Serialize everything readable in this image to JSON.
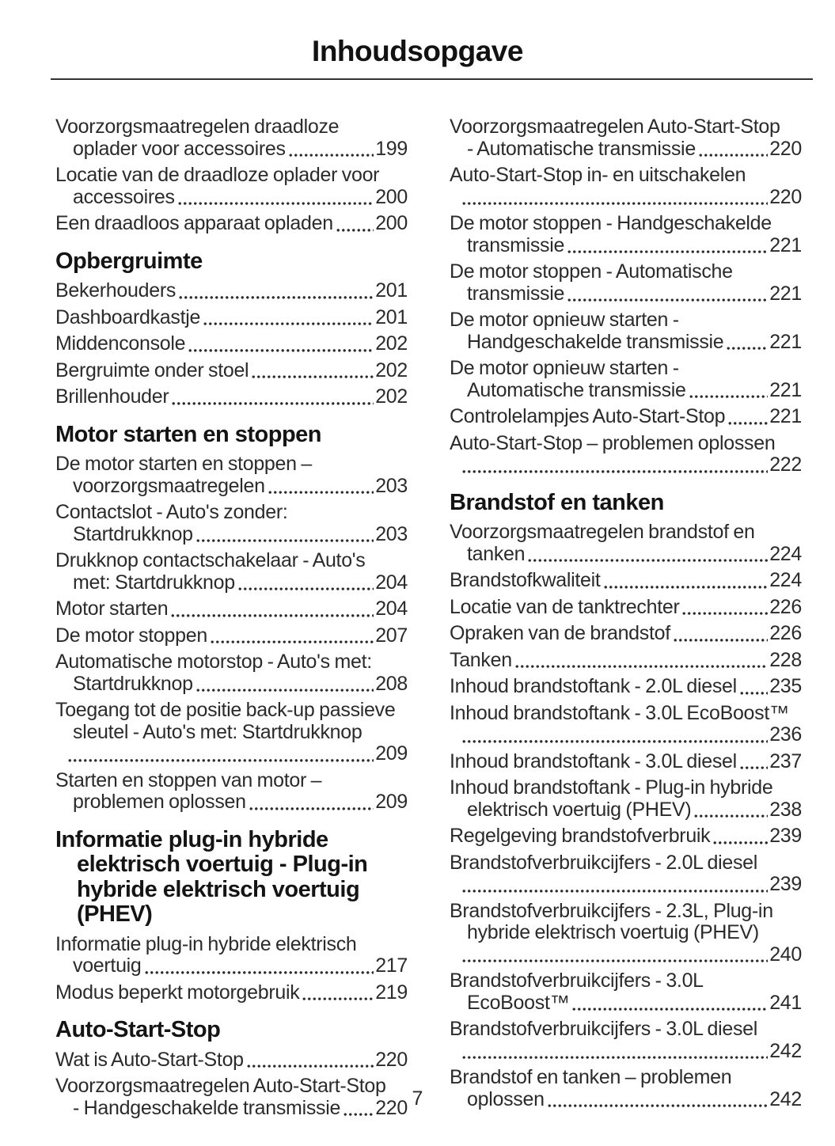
{
  "header": {
    "title": "Inhoudsopgave"
  },
  "footer": {
    "page_number": "7"
  },
  "colors": {
    "text": "#2b2b2b",
    "heading": "#141414",
    "rule": "#333333"
  },
  "toc": {
    "columns": [
      {
        "blocks": [
          {
            "type": "entry",
            "lines": [
              "Voorzorgsmaatregelen draadloze",
              "oplader voor accessoires"
            ],
            "page": "199"
          },
          {
            "type": "entry",
            "lines": [
              "Locatie van de draadloze oplader voor",
              "accessoires"
            ],
            "page": "200"
          },
          {
            "type": "entry",
            "lines": [
              "Een draadloos apparaat opladen"
            ],
            "page": "200"
          },
          {
            "type": "heading",
            "lines": [
              "Opbergruimte"
            ]
          },
          {
            "type": "entry",
            "lines": [
              "Bekerhouders"
            ],
            "page": "201"
          },
          {
            "type": "entry",
            "lines": [
              "Dashboardkastje"
            ],
            "page": "201"
          },
          {
            "type": "entry",
            "lines": [
              "Middenconsole"
            ],
            "page": "202"
          },
          {
            "type": "entry",
            "lines": [
              "Bergruimte onder stoel"
            ],
            "page": "202"
          },
          {
            "type": "entry",
            "lines": [
              "Brillenhouder"
            ],
            "page": "202"
          },
          {
            "type": "heading",
            "lines": [
              "Motor starten en stoppen"
            ]
          },
          {
            "type": "entry",
            "lines": [
              "De motor starten en stoppen –",
              "voorzorgsmaatregelen"
            ],
            "page": "203"
          },
          {
            "type": "entry",
            "lines": [
              "Contactslot - Auto's zonder:",
              "Startdrukknop"
            ],
            "page": "203"
          },
          {
            "type": "entry",
            "lines": [
              "Drukknop contactschakelaar - Auto's",
              "met: Startdrukknop"
            ],
            "page": "204"
          },
          {
            "type": "entry",
            "lines": [
              "Motor starten"
            ],
            "page": "204"
          },
          {
            "type": "entry",
            "lines": [
              "De motor stoppen"
            ],
            "page": "207"
          },
          {
            "type": "entry",
            "lines": [
              "Automatische motorstop - Auto's met:",
              "Startdrukknop"
            ],
            "page": "208"
          },
          {
            "type": "entry",
            "lines": [
              "Toegang tot de positie back-up passieve",
              "sleutel - Auto's met: Startdrukknop",
              ""
            ],
            "page": "209"
          },
          {
            "type": "entry",
            "lines": [
              "Starten en stoppen van motor –",
              "problemen oplossen"
            ],
            "page": "209"
          },
          {
            "type": "heading",
            "lines": [
              "Informatie plug-in hybride",
              "elektrisch voertuig - Plug-in",
              "hybride elektrisch voertuig",
              "(PHEV)"
            ]
          },
          {
            "type": "entry",
            "lines": [
              "Informatie plug-in hybride elektrisch",
              "voertuig"
            ],
            "page": "217"
          },
          {
            "type": "entry",
            "lines": [
              "Modus beperkt motorgebruik"
            ],
            "page": "219"
          },
          {
            "type": "heading",
            "lines": [
              "Auto-Start-Stop"
            ]
          },
          {
            "type": "entry",
            "lines": [
              "Wat is Auto-Start-Stop"
            ],
            "page": "220"
          },
          {
            "type": "entry",
            "lines": [
              "Voorzorgsmaatregelen Auto-Start-Stop",
              "- Handgeschakelde transmissie"
            ],
            "page": "220"
          }
        ]
      },
      {
        "blocks": [
          {
            "type": "entry",
            "lines": [
              "Voorzorgsmaatregelen Auto-Start-Stop",
              "- Automatische transmissie"
            ],
            "page": "220"
          },
          {
            "type": "entry",
            "lines": [
              "Auto-Start-Stop in- en uitschakelen",
              ""
            ],
            "page": "220"
          },
          {
            "type": "entry",
            "lines": [
              "De motor stoppen - Handgeschakelde",
              "transmissie"
            ],
            "page": "221"
          },
          {
            "type": "entry",
            "lines": [
              "De motor stoppen - Automatische",
              "transmissie"
            ],
            "page": "221"
          },
          {
            "type": "entry",
            "lines": [
              "De motor opnieuw starten -",
              "Handgeschakelde transmissie"
            ],
            "page": "221"
          },
          {
            "type": "entry",
            "lines": [
              "De motor opnieuw starten -",
              "Automatische transmissie"
            ],
            "page": "221"
          },
          {
            "type": "entry",
            "lines": [
              "Controlelampjes Auto-Start-Stop"
            ],
            "page": "221"
          },
          {
            "type": "entry",
            "lines": [
              "Auto-Start-Stop – problemen oplossen",
              ""
            ],
            "page": "222"
          },
          {
            "type": "heading",
            "lines": [
              "Brandstof en tanken"
            ]
          },
          {
            "type": "entry",
            "lines": [
              "Voorzorgsmaatregelen brandstof en",
              "tanken"
            ],
            "page": "224"
          },
          {
            "type": "entry",
            "lines": [
              "Brandstofkwaliteit"
            ],
            "page": "224"
          },
          {
            "type": "entry",
            "lines": [
              "Locatie van de tanktrechter"
            ],
            "page": "226"
          },
          {
            "type": "entry",
            "lines": [
              "Opraken van de brandstof"
            ],
            "page": "226"
          },
          {
            "type": "entry",
            "lines": [
              "Tanken"
            ],
            "page": "228"
          },
          {
            "type": "entry",
            "lines": [
              "Inhoud brandstoftank - 2.0L diesel"
            ],
            "page": "235"
          },
          {
            "type": "entry",
            "lines": [
              "Inhoud brandstoftank - 3.0L EcoBoost™",
              ""
            ],
            "page": "236"
          },
          {
            "type": "entry",
            "lines": [
              "Inhoud brandstoftank - 3.0L diesel"
            ],
            "page": "237"
          },
          {
            "type": "entry",
            "lines": [
              "Inhoud brandstoftank - Plug-in hybride",
              "elektrisch voertuig (PHEV)"
            ],
            "page": "238"
          },
          {
            "type": "entry",
            "lines": [
              "Regelgeving brandstofverbruik"
            ],
            "page": "239"
          },
          {
            "type": "entry",
            "lines": [
              "Brandstofverbruikcijfers - 2.0L diesel",
              ""
            ],
            "page": "239"
          },
          {
            "type": "entry",
            "lines": [
              "Brandstofverbruikcijfers - 2.3L, Plug-in",
              "hybride elektrisch voertuig (PHEV)",
              ""
            ],
            "page": "240"
          },
          {
            "type": "entry",
            "lines": [
              "Brandstofverbruikcijfers - 3.0L",
              "EcoBoost™"
            ],
            "page": "241"
          },
          {
            "type": "entry",
            "lines": [
              "Brandstofverbruikcijfers - 3.0L diesel",
              ""
            ],
            "page": "242"
          },
          {
            "type": "entry",
            "lines": [
              "Brandstof en tanken – problemen",
              "oplossen"
            ],
            "page": "242"
          }
        ]
      }
    ]
  }
}
